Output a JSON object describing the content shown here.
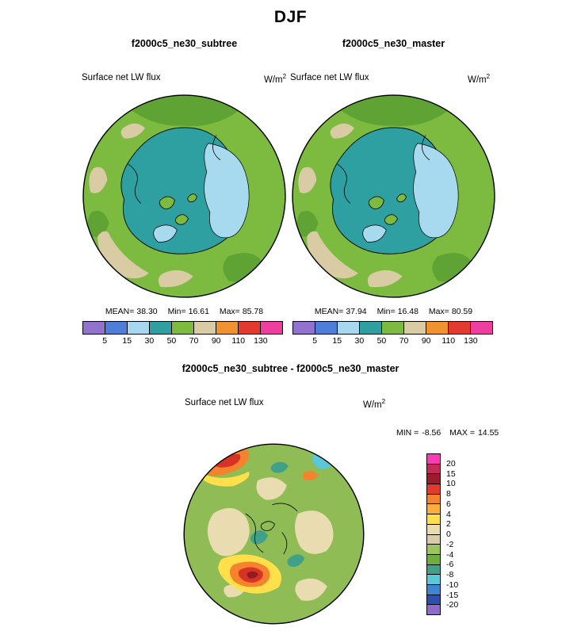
{
  "title": "DJF",
  "labels": {
    "variable": "Surface net LW flux",
    "units_base": "W/m",
    "units_exp": "2",
    "mean": "MEAN=",
    "min": "Min=",
    "max": "Max=",
    "diff_min_label": "MIN =",
    "diff_max_label": "MAX ="
  },
  "panels": {
    "subtree": {
      "title": "f2000c5_ne30_subtree",
      "stats": {
        "mean": "38.30",
        "min": "16.61",
        "max": "85.78"
      }
    },
    "master": {
      "title": "f2000c5_ne30_master",
      "stats": {
        "mean": "37.94",
        "min": "16.48",
        "max": "80.59"
      }
    },
    "diff": {
      "title": "f2000c5_ne30_subtree - f2000c5_ne30_master",
      "stats": {
        "min": "-8.56",
        "max": "14.55"
      }
    }
  },
  "chart_data": [
    {
      "type": "heatmap",
      "panel": "top-left",
      "title": "f2000c5_ne30_subtree",
      "variable": "Surface net LW flux",
      "units": "W/m^2",
      "projection": "north-polar-stereographic",
      "stats": {
        "mean": 38.3,
        "min": 16.61,
        "max": 85.78
      },
      "colorbar": {
        "orientation": "horizontal",
        "levels": [
          5,
          15,
          30,
          50,
          70,
          90,
          110,
          130
        ],
        "colors": [
          "#9173CE",
          "#4F7ED8",
          "#A6D9F0",
          "#2FA0A1",
          "#7CBA40",
          "#D9CBA3",
          "#F0922F",
          "#E23A2E",
          "#EE3FA0"
        ]
      }
    },
    {
      "type": "heatmap",
      "panel": "top-right",
      "title": "f2000c5_ne30_master",
      "variable": "Surface net LW flux",
      "units": "W/m^2",
      "projection": "north-polar-stereographic",
      "stats": {
        "mean": 37.94,
        "min": 16.48,
        "max": 80.59
      },
      "colorbar": {
        "orientation": "horizontal",
        "levels": [
          5,
          15,
          30,
          50,
          70,
          90,
          110,
          130
        ],
        "colors": [
          "#9173CE",
          "#4F7ED8",
          "#A6D9F0",
          "#2FA0A1",
          "#7CBA40",
          "#D9CBA3",
          "#F0922F",
          "#E23A2E",
          "#EE3FA0"
        ]
      }
    },
    {
      "type": "heatmap",
      "panel": "bottom-difference",
      "title": "f2000c5_ne30_subtree - f2000c5_ne30_master",
      "variable": "Surface net LW flux",
      "units": "W/m^2",
      "projection": "north-polar-stereographic",
      "stats": {
        "min": -8.56,
        "max": 14.55
      },
      "colorbar": {
        "orientation": "vertical",
        "levels": [
          20,
          15,
          10,
          8,
          6,
          4,
          2,
          0,
          -2,
          -4,
          -6,
          -8,
          -10,
          -15,
          -20
        ],
        "colors": [
          "#F93CB4",
          "#C62A57",
          "#9E1B2E",
          "#E23A2E",
          "#F5822C",
          "#FBAE3C",
          "#FFE04A",
          "#EBDCAE",
          "#D9CBA3",
          "#9DC45F",
          "#6FAE3E",
          "#41A088",
          "#5BC8D8",
          "#3E85D1",
          "#2D4FB0",
          "#8E6BC9"
        ]
      }
    }
  ]
}
